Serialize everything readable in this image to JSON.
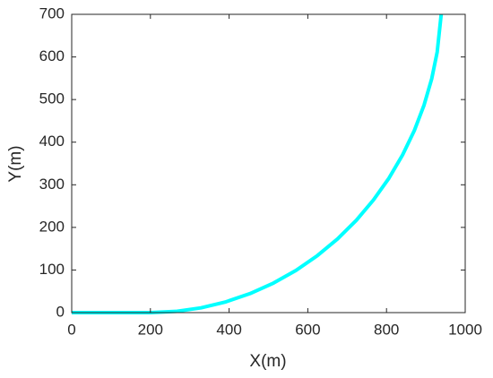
{
  "chart_data": {
    "type": "line",
    "x_label": "X(m)",
    "y_label": "Y(m)",
    "xlim": [
      0,
      1000
    ],
    "ylim": [
      0,
      700
    ],
    "xticks": [
      0,
      200,
      400,
      600,
      800,
      1000
    ],
    "yticks": [
      0,
      100,
      200,
      300,
      400,
      500,
      600,
      700
    ],
    "grid": false,
    "series": [
      {
        "color": "#00ffff",
        "x": [
          0,
          100,
          200,
          264.5,
          328.5,
          391.5,
          453.1,
          512.7,
          570,
          624.4,
          675.7,
          723.3,
          766.8,
          806.2,
          840.8,
          870.7,
          895.4,
          914.8,
          928.8,
          939
        ],
        "values": [
          0,
          0,
          0,
          2.8,
          11.2,
          25.2,
          44.6,
          69.3,
          99.1,
          133.8,
          173.1,
          216.7,
          264.3,
          315.5,
          370,
          427.3,
          486.9,
          548.5,
          611.5,
          700
        ]
      }
    ]
  }
}
